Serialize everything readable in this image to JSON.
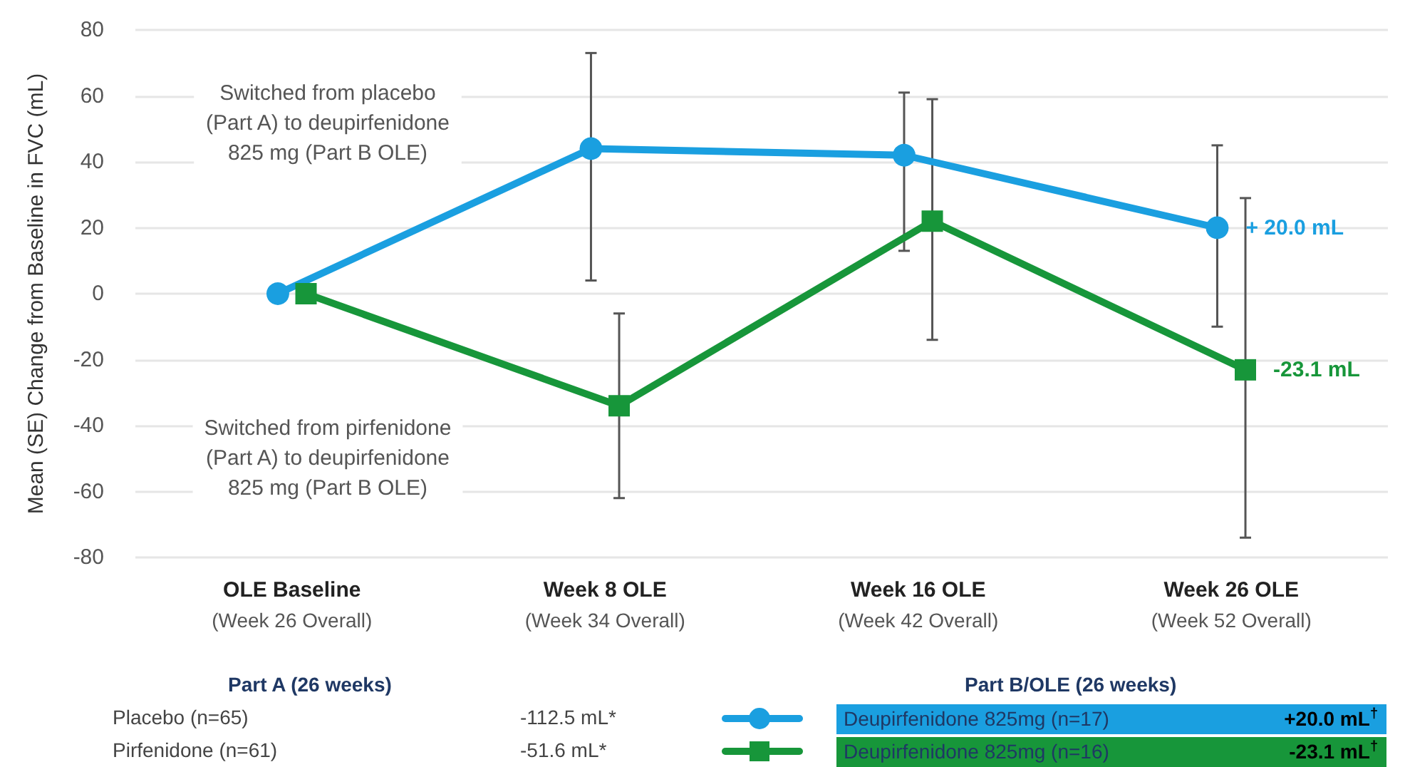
{
  "chart_data": {
    "type": "line",
    "ylabel": "Mean (SE) Change from Baseline in FVC (mL)",
    "categories": [
      "OLE Baseline\n(Week 26 Overall)",
      "Week 8 OLE\n(Week 34 Overall)",
      "Week 16 OLE\n(Week 42 Overall)",
      "Week 26 OLE\n(Week 52 Overall)"
    ],
    "series": [
      {
        "name": "Deupirfenidone 825mg (n=17)",
        "color": "#1a9fe0",
        "marker": "circle",
        "values": [
          0,
          44,
          42,
          20.0
        ],
        "errors": [
          null,
          [
            4,
            73
          ],
          [
            13,
            61
          ],
          [
            -10,
            45
          ]
        ],
        "value_labels": [
          null,
          null,
          null,
          "+ 20.0 mL"
        ]
      },
      {
        "name": "Deupirfenidone 825mg (n=16)",
        "color": "#17963a",
        "marker": "square",
        "values": [
          0,
          -34,
          22,
          -23.1
        ],
        "errors": [
          null,
          [
            -62,
            -6
          ],
          [
            -14,
            59
          ],
          [
            -74,
            29
          ]
        ],
        "value_labels": [
          null,
          null,
          null,
          "-23.1 mL"
        ]
      }
    ],
    "ylim": [
      -80,
      80
    ],
    "yticks": [
      -80,
      -60,
      -40,
      -20,
      0,
      20,
      40,
      60,
      80
    ],
    "grid": "y",
    "legend": "bottom",
    "line_style": "solid",
    "annotations": [
      "Switched from placebo\n(Part A) to deupirfenidone\n825 mg (Part B OLE)",
      "Switched from pirfenidone\n(Part A) to deupirfenidone\n825 mg (Part B OLE)",
      "Part A (26 weeks)",
      "Placebo (n=65)",
      "-112.5 mL*",
      "Pirfenidone (n=61)",
      "-51.6 mL*",
      "Part B/OLE (26 weeks)",
      "+20.0 mL$^{†}$",
      "-23.1 mL$^{†}$"
    ]
  }
}
